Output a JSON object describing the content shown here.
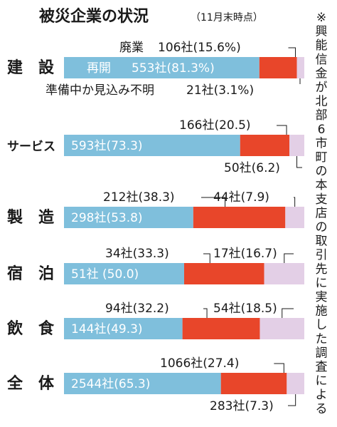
{
  "chart_data": {
    "type": "bar",
    "stacked": true,
    "orientation": "horizontal",
    "title": "被災企業の状況",
    "subtitle": "（11月末時点）",
    "source_note": "※興能信金が北部6市町の本支店の取引先に実施した調査による",
    "legend_labels": {
      "reopen": "再開",
      "closed": "廃業",
      "unknown": "準備中か見込み不明"
    },
    "colors": {
      "reopen": "#7fbfdc",
      "closed": "#e8462a",
      "unknown": "#e3cfe6"
    },
    "categories": [
      "建　設",
      "サービス",
      "製　造",
      "宿　泊",
      "飲　食",
      "全　体"
    ],
    "series": [
      {
        "name": "再開",
        "values": [
          81.3,
          73.3,
          53.8,
          50.0,
          49.3,
          65.3
        ],
        "labels": [
          "553社(81.3%)",
          "593社(73.3)",
          "298社(53.8)",
          "51社 (50.0)",
          "144社(49.3)",
          "2544社(65.3)"
        ]
      },
      {
        "name": "廃業",
        "values": [
          15.6,
          20.5,
          38.3,
          33.3,
          32.2,
          27.4
        ],
        "labels": [
          "106社(15.6%)",
          "166社(20.5)",
          "212社(38.3)",
          "34社(33.3)",
          "94社(32.2)",
          "1066社(27.4)"
        ]
      },
      {
        "name": "準備中か見込み不明",
        "values": [
          3.1,
          6.2,
          7.9,
          16.7,
          18.5,
          7.3
        ],
        "labels": [
          "21社(3.1%)",
          "50社(6.2)",
          "44社(7.9)",
          "17社(16.7)",
          "54社(18.5)",
          "283社(7.3)"
        ]
      }
    ],
    "xlim": [
      0,
      100
    ]
  }
}
